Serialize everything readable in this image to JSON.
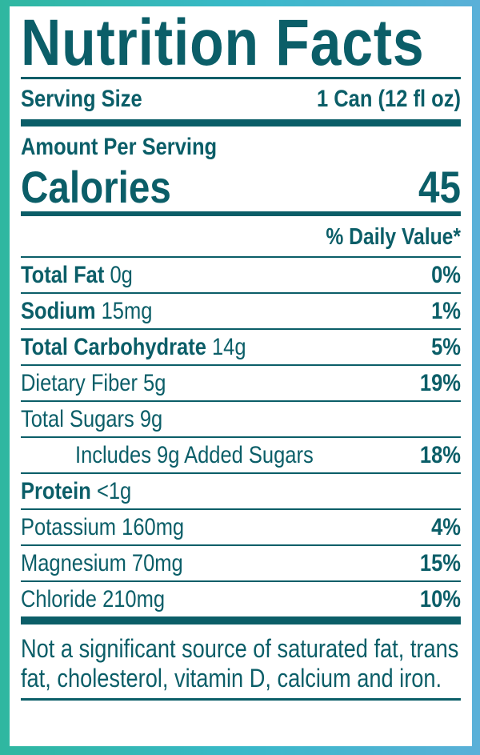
{
  "title": "Nutrition Facts",
  "serving": {
    "label": "Serving Size",
    "value": "1 Can (12 fl oz)"
  },
  "amount_per_serving": "Amount Per Serving",
  "calories": {
    "label": "Calories",
    "value": "45"
  },
  "daily_value_header": "% Daily Value*",
  "rows": [
    {
      "name": "Total Fat",
      "amount": "0g",
      "dv": "0%",
      "bold": true
    },
    {
      "name": "Sodium",
      "amount": "15mg",
      "dv": "1%",
      "bold": true
    },
    {
      "name": "Total Carbohydrate",
      "amount": "14g",
      "dv": "5%",
      "bold": true
    },
    {
      "name": "Dietary Fiber",
      "amount": "5g",
      "dv": "19%",
      "bold": false
    },
    {
      "name": "Total Sugars",
      "amount": "9g",
      "bold": false
    },
    {
      "name": "Includes 9g Added Sugars",
      "dv": "18%",
      "bold": false,
      "indent": true
    },
    {
      "name": "Protein",
      "amount": "<1g",
      "bold": true
    },
    {
      "name": "Potassium",
      "amount": "160mg",
      "dv": "4%",
      "bold": false
    },
    {
      "name": "Magnesium",
      "amount": "70mg",
      "dv": "15%",
      "bold": false
    },
    {
      "name": "Chloride",
      "amount": "210mg",
      "dv": "10%",
      "bold": false
    }
  ],
  "footnote": "Not a significant source of saturated fat, trans fat, cholesterol, vitamin D, calcium and iron."
}
